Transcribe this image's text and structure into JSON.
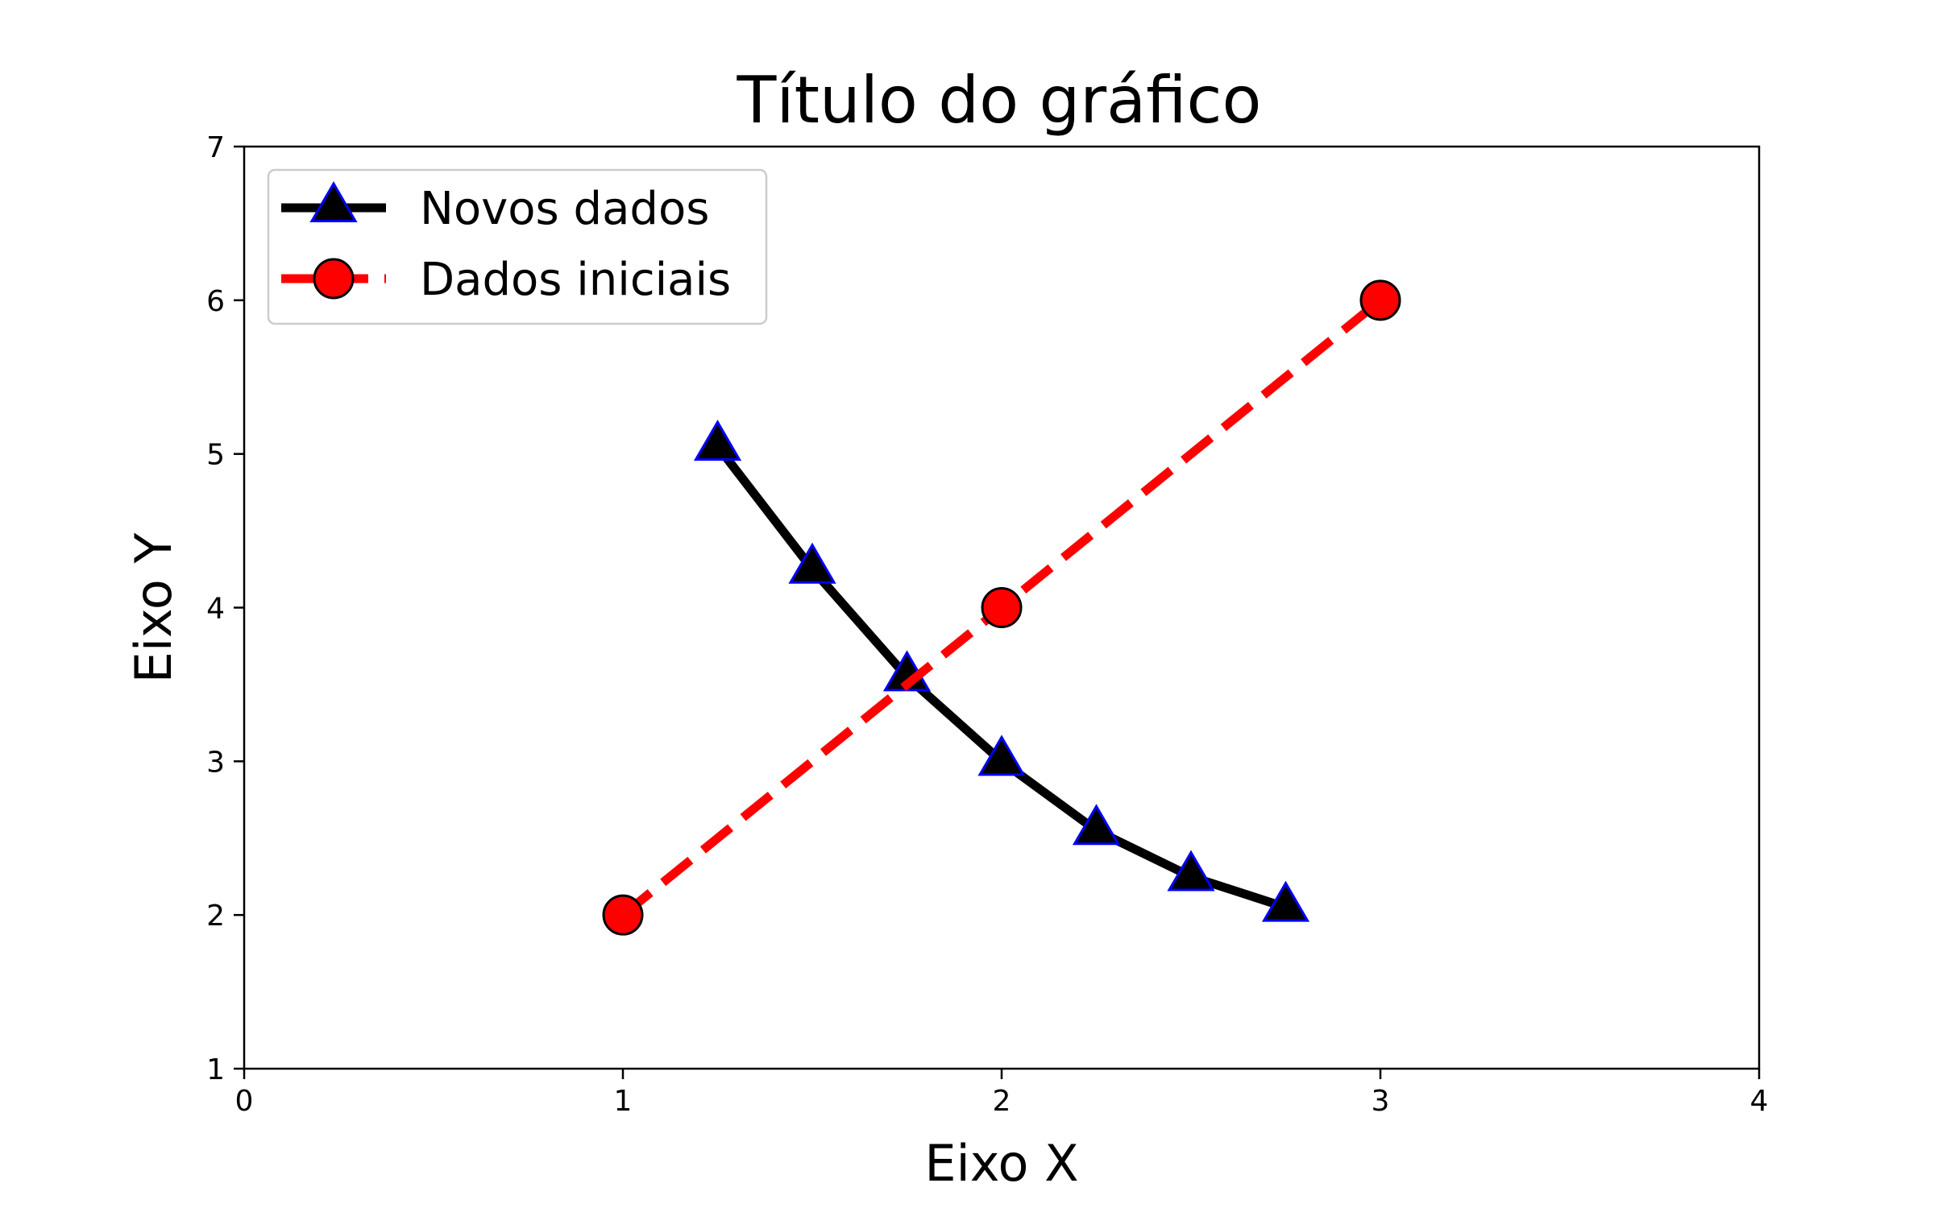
{
  "chart_data": {
    "type": "line",
    "title": "Título do gráfico",
    "xlabel": "Eixo X",
    "ylabel": "Eixo Y",
    "xlim": [
      0,
      4
    ],
    "ylim": [
      1,
      7
    ],
    "xticks": [
      "0",
      "1",
      "2",
      "3",
      "4"
    ],
    "yticks": [
      "1",
      "2",
      "3",
      "4",
      "5",
      "6",
      "7"
    ],
    "grid": false,
    "legend_position": "top-left",
    "series": [
      {
        "name": "Novos dados",
        "x": [
          1.25,
          1.5,
          1.75,
          2.0,
          2.25,
          2.5,
          2.75
        ],
        "y": [
          5.05,
          4.25,
          3.55,
          3.0,
          2.55,
          2.25,
          2.05
        ],
        "line_color": "#000000",
        "line_style": "solid",
        "marker": "triangle",
        "marker_face": "#000000",
        "marker_edge": "#0000ff"
      },
      {
        "name": "Dados iniciais",
        "x": [
          1,
          2,
          3
        ],
        "y": [
          2,
          4,
          6
        ],
        "line_color": "#ff0000",
        "line_style": "dashed",
        "marker": "circle",
        "marker_face": "#ff0000",
        "marker_edge": "#000000"
      }
    ]
  }
}
